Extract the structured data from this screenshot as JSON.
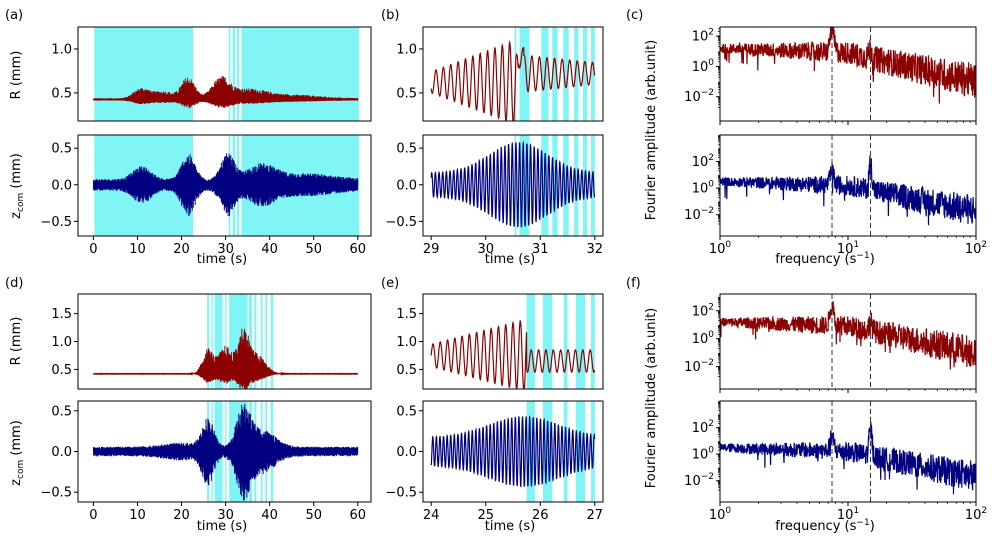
{
  "figure": {
    "colors": {
      "r_series": "#8b0000",
      "z_series": "#000080",
      "highlight": "#7ff5f5"
    },
    "panel_labels": [
      "(a)",
      "(b)",
      "(c)",
      "(d)",
      "(e)",
      "(f)"
    ],
    "texts": {
      "r_ylabel": "R (mm)",
      "z_ylabel_main": "z",
      "z_ylabel_sub": "com",
      "z_ylabel_unit": " (mm)",
      "time_xlabel": "time (s)",
      "fourier_ylabel": "Fourier amplitude (arb.unit)",
      "freq_xlabel_main": "frequency (s",
      "freq_xlabel_sup": "−1",
      "freq_xlabel_end": ")"
    }
  },
  "chart_data": [
    {
      "id": "a_R",
      "type": "line",
      "panel": "(a)",
      "series": "R",
      "ylabel": "R (mm)",
      "xlim": [
        -3.5,
        63
      ],
      "ylim": [
        0.18,
        1.25
      ],
      "xticks": [],
      "yticks": [
        0.5,
        1.0
      ],
      "ytick_labels": [
        "0.5",
        "1.0"
      ],
      "highlight_spans": [
        [
          0.2,
          22.6
        ],
        [
          30.7,
          31.1
        ],
        [
          31.6,
          32.2
        ],
        [
          32.6,
          33.1
        ],
        [
          33.6,
          60.3
        ]
      ],
      "data": []
    },
    {
      "id": "a_z",
      "type": "line",
      "panel": "(a)",
      "series": "z_com",
      "ylabel": "z_com (mm)",
      "xlabel": "time (s)",
      "xlim": [
        -3.5,
        63
      ],
      "ylim": [
        -0.7,
        0.68
      ],
      "xticks": [
        0,
        10,
        20,
        30,
        40,
        50,
        60
      ],
      "xtick_labels": [
        "0",
        "10",
        "20",
        "30",
        "40",
        "50",
        "60"
      ],
      "yticks": [
        -0.5,
        0.0,
        0.5
      ],
      "ytick_labels": [
        "−0.5",
        "0.0",
        "0.5"
      ],
      "highlight_spans": [
        [
          0.2,
          22.6
        ],
        [
          30.7,
          31.1
        ],
        [
          31.6,
          32.2
        ],
        [
          32.6,
          33.1
        ],
        [
          33.6,
          60.3
        ]
      ],
      "data": []
    },
    {
      "id": "b_R",
      "type": "line",
      "panel": "(b)",
      "series": "R",
      "xlim": [
        28.85,
        32.15
      ],
      "ylim": [
        0.18,
        1.25
      ],
      "xticks": [],
      "yticks": [
        0.5,
        1.0
      ],
      "ytick_labels": [
        "0.5",
        "1.0"
      ],
      "highlight_spans": [
        [
          30.53,
          30.56
        ],
        [
          30.62,
          30.8
        ],
        [
          31.02,
          31.15
        ],
        [
          31.22,
          31.32
        ],
        [
          31.42,
          31.52
        ],
        [
          31.62,
          31.7
        ],
        [
          31.78,
          31.86
        ],
        [
          31.93,
          32.0
        ]
      ],
      "data": []
    },
    {
      "id": "b_z",
      "type": "line",
      "panel": "(b)",
      "series": "z_com",
      "xlabel": "time (s)",
      "xlim": [
        28.85,
        32.15
      ],
      "ylim": [
        -0.7,
        0.68
      ],
      "xticks": [
        29,
        30,
        31,
        32
      ],
      "xtick_labels": [
        "29",
        "30",
        "31",
        "32"
      ],
      "yticks": [
        -0.5,
        0.0,
        0.5
      ],
      "ytick_labels": [
        "−0.5",
        "0.0",
        "0.5"
      ],
      "highlight_spans": [
        [
          30.53,
          30.56
        ],
        [
          30.62,
          30.8
        ],
        [
          31.02,
          31.15
        ],
        [
          31.22,
          31.32
        ],
        [
          31.42,
          31.52
        ],
        [
          31.62,
          31.7
        ],
        [
          31.78,
          31.86
        ],
        [
          31.93,
          32.0
        ]
      ],
      "data": []
    },
    {
      "id": "c_R",
      "type": "line",
      "panel": "(c)",
      "series": "R",
      "xscale": "log",
      "yscale": "log",
      "xlim": [
        1,
        100
      ],
      "ylim_log10": [
        -3.6,
        2.6
      ],
      "xticks": [],
      "yticks_log10": [
        -2,
        0,
        2
      ],
      "ytick_labels": [
        "10^-2",
        "10^0",
        "10^2"
      ],
      "peaks_freq": [
        7.5,
        15
      ],
      "reference_lines_freq": [
        7.5,
        15
      ],
      "data": []
    },
    {
      "id": "c_z",
      "type": "line",
      "panel": "(c)",
      "series": "z_com",
      "xscale": "log",
      "yscale": "log",
      "xlabel": "frequency (s^-1)",
      "xlim": [
        1,
        100
      ],
      "ylim_log10": [
        -3.6,
        4.0
      ],
      "xticks": [
        1,
        10,
        100
      ],
      "xtick_labels": [
        "10^0",
        "10^1",
        "10^2"
      ],
      "yticks_log10": [
        -2,
        0,
        2
      ],
      "ytick_labels": [
        "10^-2",
        "10^0",
        "10^2"
      ],
      "peaks_freq": [
        7.5,
        15
      ],
      "reference_lines_freq": [
        7.5,
        15
      ],
      "data": []
    },
    {
      "id": "d_R",
      "type": "line",
      "panel": "(d)",
      "series": "R",
      "ylabel": "R (mm)",
      "xlim": [
        -3.5,
        63
      ],
      "ylim": [
        0.15,
        1.85
      ],
      "xticks": [],
      "yticks": [
        0.5,
        1.0,
        1.5
      ],
      "ytick_labels": [
        "0.5",
        "1.0",
        "1.5"
      ],
      "highlight_spans": [
        [
          25.8,
          26.3
        ],
        [
          26.8,
          27.1
        ],
        [
          27.5,
          29.3
        ],
        [
          29.9,
          30.2
        ],
        [
          30.8,
          35.0
        ],
        [
          35.3,
          36.0
        ],
        [
          36.5,
          37.0
        ],
        [
          38.0,
          38.4
        ],
        [
          39.0,
          39.4
        ],
        [
          40.2,
          40.8
        ]
      ],
      "data": []
    },
    {
      "id": "d_z",
      "type": "line",
      "panel": "(d)",
      "series": "z_com",
      "ylabel": "z_com (mm)",
      "xlabel": "time (s)",
      "xlim": [
        -3.5,
        63
      ],
      "ylim": [
        -0.62,
        0.62
      ],
      "xticks": [
        0,
        10,
        20,
        30,
        40,
        50,
        60
      ],
      "xtick_labels": [
        "0",
        "10",
        "20",
        "30",
        "40",
        "50",
        "60"
      ],
      "yticks": [
        -0.5,
        0.0,
        0.5
      ],
      "ytick_labels": [
        "−0.5",
        "0.0",
        "0.5"
      ],
      "highlight_spans": [
        [
          25.8,
          26.3
        ],
        [
          26.8,
          27.1
        ],
        [
          27.5,
          29.3
        ],
        [
          29.9,
          30.2
        ],
        [
          30.8,
          35.0
        ],
        [
          35.3,
          36.0
        ],
        [
          36.5,
          37.0
        ],
        [
          38.0,
          38.4
        ],
        [
          39.0,
          39.4
        ],
        [
          40.2,
          40.8
        ]
      ],
      "data": []
    },
    {
      "id": "e_R",
      "type": "line",
      "panel": "(e)",
      "series": "R",
      "xlim": [
        23.85,
        27.15
      ],
      "ylim": [
        0.15,
        1.85
      ],
      "xticks": [],
      "yticks": [
        0.5,
        1.0,
        1.5
      ],
      "ytick_labels": [
        "0.5",
        "1.0",
        "1.5"
      ],
      "highlight_spans": [
        [
          25.75,
          25.9
        ],
        [
          26.05,
          26.22
        ],
        [
          26.43,
          26.5
        ],
        [
          26.65,
          26.82
        ],
        [
          26.93,
          27.0
        ]
      ],
      "data": []
    },
    {
      "id": "e_z",
      "type": "line",
      "panel": "(e)",
      "series": "z_com",
      "xlabel": "time (s)",
      "xlim": [
        23.85,
        27.15
      ],
      "ylim": [
        -0.62,
        0.62
      ],
      "xticks": [
        24,
        25,
        26,
        27
      ],
      "xtick_labels": [
        "24",
        "25",
        "26",
        "27"
      ],
      "yticks": [
        -0.5,
        0.0,
        0.5
      ],
      "ytick_labels": [
        "−0.5",
        "0.0",
        "0.5"
      ],
      "highlight_spans": [
        [
          25.75,
          25.9
        ],
        [
          26.05,
          26.22
        ],
        [
          26.43,
          26.5
        ],
        [
          26.65,
          26.82
        ],
        [
          26.93,
          27.0
        ]
      ],
      "data": []
    },
    {
      "id": "f_R",
      "type": "line",
      "panel": "(f)",
      "series": "R",
      "xscale": "log",
      "yscale": "log",
      "xlim": [
        1,
        100
      ],
      "ylim_log10": [
        -3.6,
        3.2
      ],
      "xticks": [],
      "yticks_log10": [
        -2,
        0,
        2
      ],
      "ytick_labels": [
        "10^-2",
        "10^0",
        "10^2"
      ],
      "peaks_freq": [
        7.5,
        15
      ],
      "reference_lines_freq": [
        7.5,
        15
      ],
      "data": []
    },
    {
      "id": "f_z",
      "type": "line",
      "panel": "(f)",
      "series": "z_com",
      "xscale": "log",
      "yscale": "log",
      "xlabel": "frequency (s^-1)",
      "xlim": [
        1,
        100
      ],
      "ylim_log10": [
        -3.6,
        4.0
      ],
      "xticks": [
        1,
        10,
        100
      ],
      "xtick_labels": [
        "10^0",
        "10^1",
        "10^2"
      ],
      "yticks_log10": [
        -2,
        0,
        2
      ],
      "ytick_labels": [
        "10^-2",
        "10^0",
        "10^2"
      ],
      "peaks_freq": [
        7.5,
        15
      ],
      "reference_lines_freq": [
        7.5,
        15
      ],
      "data": []
    }
  ]
}
